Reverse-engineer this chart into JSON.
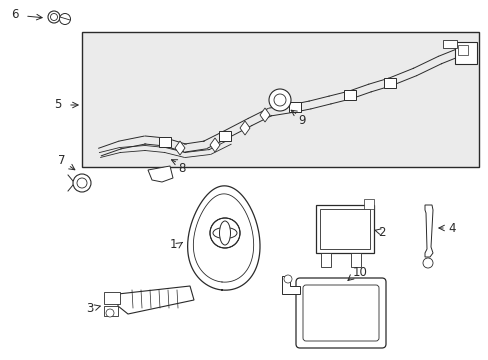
{
  "bg_color": "#ffffff",
  "box_bg": "#ebebeb",
  "line_color": "#2a2a2a",
  "figsize": [
    4.89,
    3.6
  ],
  "dpi": 100,
  "xlim": [
    0,
    489
  ],
  "ylim": [
    0,
    360
  ]
}
